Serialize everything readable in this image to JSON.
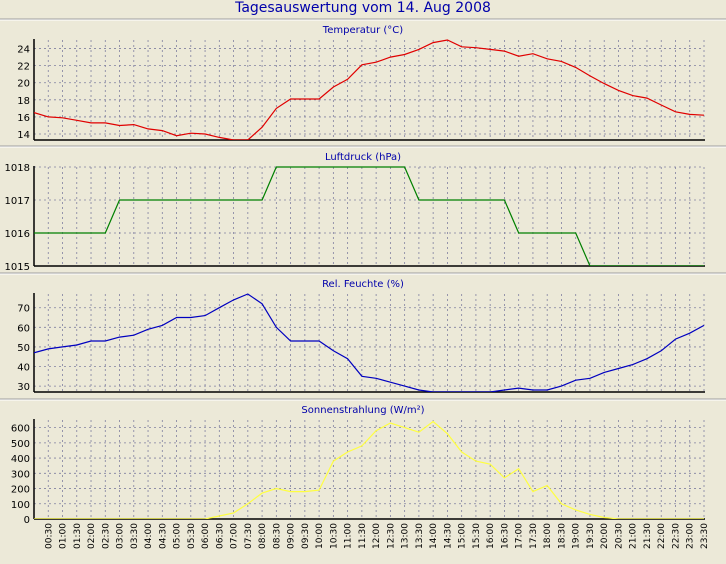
{
  "window": {
    "title": "Tagesauswertung vom 14. Aug 2008"
  },
  "chart_data": [
    {
      "type": "line",
      "title": "Temperatur (°C)",
      "color": "#E00000",
      "ylim": [
        13.3,
        25
      ],
      "yticks": [
        14,
        16,
        18,
        20,
        22,
        24
      ],
      "grid": true,
      "x": [
        "00:00",
        "00:30",
        "01:00",
        "01:30",
        "02:00",
        "02:30",
        "03:00",
        "03:30",
        "04:00",
        "04:30",
        "05:00",
        "05:30",
        "06:00",
        "06:30",
        "07:00",
        "07:30",
        "08:00",
        "08:30",
        "09:00",
        "09:30",
        "10:00",
        "10:30",
        "11:00",
        "11:30",
        "12:00",
        "12:30",
        "13:00",
        "13:30",
        "14:00",
        "14:30",
        "15:00",
        "15:30",
        "16:00",
        "16:30",
        "17:00",
        "17:30",
        "18:00",
        "18:30",
        "19:00",
        "19:30",
        "20:00",
        "20:30",
        "21:00",
        "21:30",
        "22:00",
        "22:30",
        "23:00",
        "23:30"
      ],
      "values": [
        16.5,
        16.0,
        15.9,
        15.6,
        15.3,
        15.3,
        15.0,
        15.1,
        14.6,
        14.4,
        13.8,
        14.1,
        14.0,
        13.6,
        13.3,
        13.3,
        14.8,
        17.0,
        18.1,
        18.1,
        18.1,
        19.5,
        20.4,
        22.1,
        22.4,
        23.0,
        23.3,
        23.9,
        24.7,
        25.0,
        24.2,
        24.1,
        23.9,
        23.7,
        23.1,
        23.4,
        22.8,
        22.5,
        21.8,
        20.8,
        19.9,
        19.1,
        18.5,
        18.2,
        17.4,
        16.6,
        16.3,
        16.2
      ]
    },
    {
      "type": "line",
      "title": "Luftdruck (hPa)",
      "color": "#008000",
      "ylim": [
        1015,
        1018
      ],
      "yticks": [
        1015,
        1016,
        1017,
        1018
      ],
      "grid": true,
      "x": [
        "00:00",
        "00:30",
        "01:00",
        "01:30",
        "02:00",
        "02:30",
        "03:00",
        "03:30",
        "04:00",
        "04:30",
        "05:00",
        "05:30",
        "06:00",
        "06:30",
        "07:00",
        "07:30",
        "08:00",
        "08:30",
        "09:00",
        "09:30",
        "10:00",
        "10:30",
        "11:00",
        "11:30",
        "12:00",
        "12:30",
        "13:00",
        "13:30",
        "14:00",
        "14:30",
        "15:00",
        "15:30",
        "16:00",
        "16:30",
        "17:00",
        "17:30",
        "18:00",
        "18:30",
        "19:00",
        "19:30",
        "20:00",
        "20:30",
        "21:00",
        "21:30",
        "22:00",
        "22:30",
        "23:00",
        "23:30"
      ],
      "values": [
        1016,
        1016,
        1016,
        1016,
        1016,
        1016,
        1017,
        1017,
        1017,
        1017,
        1017,
        1017,
        1017,
        1017,
        1017,
        1017,
        1017,
        1018,
        1018,
        1018,
        1018,
        1018,
        1018,
        1018,
        1018,
        1018,
        1018,
        1017,
        1017,
        1017,
        1017,
        1017,
        1017,
        1017,
        1016,
        1016,
        1016,
        1016,
        1016,
        1015,
        1015,
        1015,
        1015,
        1015,
        1015,
        1015,
        1015,
        1015
      ]
    },
    {
      "type": "line",
      "title": "Rel. Feuchte (%)",
      "color": "#0000C0",
      "ylim": [
        27,
        77
      ],
      "yticks": [
        30,
        40,
        50,
        60,
        70
      ],
      "grid": true,
      "x": [
        "00:00",
        "00:30",
        "01:00",
        "01:30",
        "02:00",
        "02:30",
        "03:00",
        "03:30",
        "04:00",
        "04:30",
        "05:00",
        "05:30",
        "06:00",
        "06:30",
        "07:00",
        "07:30",
        "08:00",
        "08:30",
        "09:00",
        "09:30",
        "10:00",
        "10:30",
        "11:00",
        "11:30",
        "12:00",
        "12:30",
        "13:00",
        "13:30",
        "14:00",
        "14:30",
        "15:00",
        "15:30",
        "16:00",
        "16:30",
        "17:00",
        "17:30",
        "18:00",
        "18:30",
        "19:00",
        "19:30",
        "20:00",
        "20:30",
        "21:00",
        "21:30",
        "22:00",
        "22:30",
        "23:00",
        "23:30"
      ],
      "values": [
        47,
        49,
        50,
        51,
        53,
        53,
        55,
        56,
        59,
        61,
        65,
        65,
        66,
        70,
        74,
        77,
        72,
        60,
        53,
        53,
        53,
        48,
        44,
        35,
        34,
        32,
        30,
        28,
        27,
        27,
        27,
        27,
        27,
        28,
        29,
        28,
        28,
        30,
        33,
        34,
        37,
        39,
        41,
        44,
        48,
        54,
        57,
        61
      ]
    },
    {
      "type": "line",
      "title": "Sonnenstrahlung (W/m²)",
      "color": "#FFFF40",
      "ylim": [
        0,
        650
      ],
      "yticks": [
        0,
        100,
        200,
        300,
        400,
        500,
        600
      ],
      "grid": true,
      "x": [
        "00:00",
        "00:30",
        "01:00",
        "01:30",
        "02:00",
        "02:30",
        "03:00",
        "03:30",
        "04:00",
        "04:30",
        "05:00",
        "05:30",
        "06:00",
        "06:30",
        "07:00",
        "07:30",
        "08:00",
        "08:30",
        "09:00",
        "09:30",
        "10:00",
        "10:30",
        "11:00",
        "11:30",
        "12:00",
        "12:30",
        "13:00",
        "13:30",
        "14:00",
        "14:30",
        "15:00",
        "15:30",
        "16:00",
        "16:30",
        "17:00",
        "17:30",
        "18:00",
        "18:30",
        "19:00",
        "19:30",
        "20:00",
        "20:30",
        "21:00",
        "21:30",
        "22:00",
        "22:30",
        "23:00",
        "23:30"
      ],
      "values": [
        0,
        0,
        0,
        0,
        0,
        0,
        0,
        0,
        0,
        0,
        0,
        0,
        0,
        20,
        40,
        100,
        170,
        200,
        180,
        180,
        190,
        380,
        440,
        480,
        580,
        630,
        600,
        570,
        640,
        560,
        440,
        380,
        360,
        270,
        330,
        180,
        220,
        100,
        60,
        30,
        10,
        0,
        0,
        0,
        0,
        0,
        0,
        0
      ],
      "xticks": [
        "00:30",
        "01:00",
        "01:30",
        "02:00",
        "02:30",
        "03:00",
        "03:30",
        "04:00",
        "04:30",
        "05:00",
        "05:30",
        "06:00",
        "06:30",
        "07:00",
        "07:30",
        "08:00",
        "08:30",
        "09:00",
        "09:30",
        "10:00",
        "10:30",
        "11:00",
        "11:30",
        "12:00",
        "12:30",
        "13:00",
        "13:30",
        "14:00",
        "14:30",
        "15:00",
        "15:30",
        "16:00",
        "16:30",
        "17:00",
        "17:30",
        "18:00",
        "18:30",
        "19:00",
        "19:30",
        "20:00",
        "20:30",
        "21:00",
        "21:30",
        "22:00",
        "22:30",
        "23:00",
        "23:30"
      ]
    }
  ]
}
